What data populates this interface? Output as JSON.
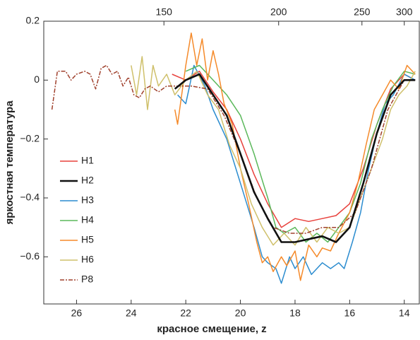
{
  "chart_data": {
    "type": "line",
    "xlabel": "красное смещение, z",
    "ylabel": "яркостная температура",
    "xlim": [
      27.2,
      13.45
    ],
    "ylim": [
      -0.76,
      0.2
    ],
    "xticks": [
      26,
      24,
      22,
      20,
      18,
      16,
      14
    ],
    "yticks": [
      0.2,
      0,
      {
        "value": -0.2,
        "label": "−0.2"
      },
      {
        "value": -0.4,
        "label": "−0.4"
      },
      {
        "value": -0.6,
        "label": "−0.6"
      }
    ],
    "x2ticks": [
      {
        "value": 22.8,
        "label": "150"
      },
      {
        "value": 18.6,
        "label": "200"
      },
      {
        "value": 15.55,
        "label": "250"
      },
      {
        "value": 14.0,
        "label": "300"
      }
    ],
    "series": [
      {
        "name": "H1",
        "color": "#e8413c",
        "width": 1.5,
        "x": [
          22.5,
          22,
          21.5,
          21,
          20.5,
          20,
          19.5,
          19,
          18.5,
          18,
          17.5,
          17,
          16.5,
          16,
          15.5,
          15,
          14.5,
          14,
          13.6
        ],
        "values": [
          0.02,
          0.0,
          0.03,
          -0.04,
          -0.1,
          -0.2,
          -0.32,
          -0.42,
          -0.5,
          -0.47,
          -0.48,
          -0.47,
          -0.46,
          -0.42,
          -0.3,
          -0.15,
          -0.03,
          0.02,
          0.0
        ]
      },
      {
        "name": "H2",
        "color": "#111111",
        "width": 2.6,
        "x": [
          22.4,
          22,
          21.5,
          21,
          20.5,
          20,
          19.5,
          19,
          18.5,
          18,
          17.5,
          17,
          16.5,
          16,
          15.5,
          15,
          14.5,
          14,
          13.6
        ],
        "values": [
          -0.03,
          0.0,
          0.02,
          -0.05,
          -0.12,
          -0.25,
          -0.38,
          -0.47,
          -0.55,
          -0.55,
          -0.54,
          -0.53,
          -0.55,
          -0.5,
          -0.35,
          -0.18,
          -0.05,
          0.0,
          0.0
        ]
      },
      {
        "name": "H3",
        "color": "#2b8ccf",
        "width": 1.5,
        "x": [
          22.3,
          22,
          21.7,
          21.3,
          21,
          20.5,
          20,
          19.5,
          19.2,
          19,
          18.7,
          18.5,
          18.2,
          18,
          17.7,
          17.4,
          17,
          16.7,
          16.4,
          16.2,
          15.9,
          15.6,
          15.3,
          15,
          14.7,
          14.4,
          14,
          13.6
        ],
        "values": [
          -0.05,
          -0.08,
          0.05,
          -0.02,
          -0.1,
          -0.2,
          -0.35,
          -0.5,
          -0.6,
          -0.62,
          -0.64,
          -0.69,
          -0.6,
          -0.64,
          -0.6,
          -0.66,
          -0.62,
          -0.64,
          -0.62,
          -0.64,
          -0.55,
          -0.45,
          -0.3,
          -0.18,
          -0.08,
          -0.05,
          0.02,
          0.0
        ]
      },
      {
        "name": "H4",
        "color": "#5bb85b",
        "width": 1.5,
        "x": [
          22,
          21.5,
          21,
          20.5,
          20,
          19.5,
          19,
          18.7,
          18.4,
          18,
          17.6,
          17.2,
          16.8,
          16.4,
          16,
          15.6,
          15.2,
          14.8,
          14.4,
          14,
          13.6
        ],
        "values": [
          0.03,
          0.05,
          0.0,
          -0.05,
          -0.12,
          -0.25,
          -0.4,
          -0.5,
          -0.52,
          -0.5,
          -0.55,
          -0.52,
          -0.55,
          -0.5,
          -0.45,
          -0.35,
          -0.2,
          -0.1,
          -0.02,
          0.03,
          0.02
        ]
      },
      {
        "name": "H5",
        "color": "#f58a2a",
        "width": 1.5,
        "x": [
          22.4,
          22.3,
          22,
          21.8,
          21.6,
          21.4,
          21.2,
          21,
          20.8,
          20.6,
          20.3,
          20,
          19.7,
          19.4,
          19.2,
          19,
          18.8,
          18.5,
          18.3,
          18,
          17.8,
          17.5,
          17.2,
          17,
          16.7,
          16.4,
          16,
          15.7,
          15.4,
          15.1,
          14.8,
          14.5,
          14.2,
          13.9,
          13.6
        ],
        "values": [
          -0.1,
          -0.15,
          0.05,
          0.16,
          0.05,
          0.14,
          0.0,
          0.1,
          0.02,
          -0.08,
          -0.15,
          -0.3,
          -0.42,
          -0.55,
          -0.62,
          -0.6,
          -0.65,
          -0.6,
          -0.63,
          -0.58,
          -0.68,
          -0.56,
          -0.6,
          -0.57,
          -0.58,
          -0.52,
          -0.45,
          -0.35,
          -0.22,
          -0.1,
          -0.05,
          0.0,
          -0.03,
          0.05,
          0.02
        ]
      },
      {
        "name": "H6",
        "color": "#cfc06b",
        "width": 1.5,
        "x": [
          24,
          23.8,
          23.6,
          23.4,
          23.2,
          23,
          22.7,
          22.4,
          22,
          21.6,
          21.2,
          20.8,
          20.4,
          20,
          19.6,
          19.2,
          18.8,
          18.4,
          18,
          17.6,
          17.2,
          16.8,
          16.4,
          16,
          15.6,
          15.2,
          14.8,
          14.5,
          14.2,
          13.9,
          13.6
        ],
        "values": [
          0.05,
          -0.05,
          0.08,
          -0.1,
          0.05,
          -0.02,
          0.02,
          -0.05,
          0.0,
          0.03,
          -0.05,
          -0.1,
          -0.22,
          -0.3,
          -0.42,
          -0.5,
          -0.56,
          -0.52,
          -0.56,
          -0.5,
          -0.55,
          -0.5,
          -0.52,
          -0.5,
          -0.4,
          -0.3,
          -0.2,
          -0.1,
          -0.05,
          -0.02,
          0.03
        ]
      },
      {
        "name": "P8",
        "color": "#a0412d",
        "width": 1.5,
        "dash": "6 2 2 2",
        "x": [
          26.9,
          26.7,
          26.4,
          26.2,
          26,
          25.7,
          25.5,
          25.3,
          25.1,
          24.9,
          24.7,
          24.5,
          24.3,
          24.1,
          23.9,
          23.7,
          23.5,
          23.3,
          23,
          22.7,
          22.4,
          21.8,
          21.2,
          20.6,
          20,
          19.4,
          18.8,
          18.2,
          17.6,
          17,
          16.4,
          15.8,
          15.2,
          14.6,
          14,
          13.6
        ],
        "values": [
          -0.1,
          0.03,
          0.03,
          0.0,
          0.02,
          0.03,
          0.02,
          -0.03,
          0.04,
          0.05,
          0.02,
          0.03,
          -0.02,
          0.01,
          -0.05,
          -0.06,
          -0.03,
          -0.02,
          -0.04,
          -0.02,
          -0.02,
          -0.02,
          -0.03,
          -0.12,
          -0.25,
          -0.4,
          -0.5,
          -0.52,
          -0.52,
          -0.5,
          -0.5,
          -0.45,
          -0.3,
          -0.1,
          0.0,
          0.0
        ]
      }
    ]
  }
}
